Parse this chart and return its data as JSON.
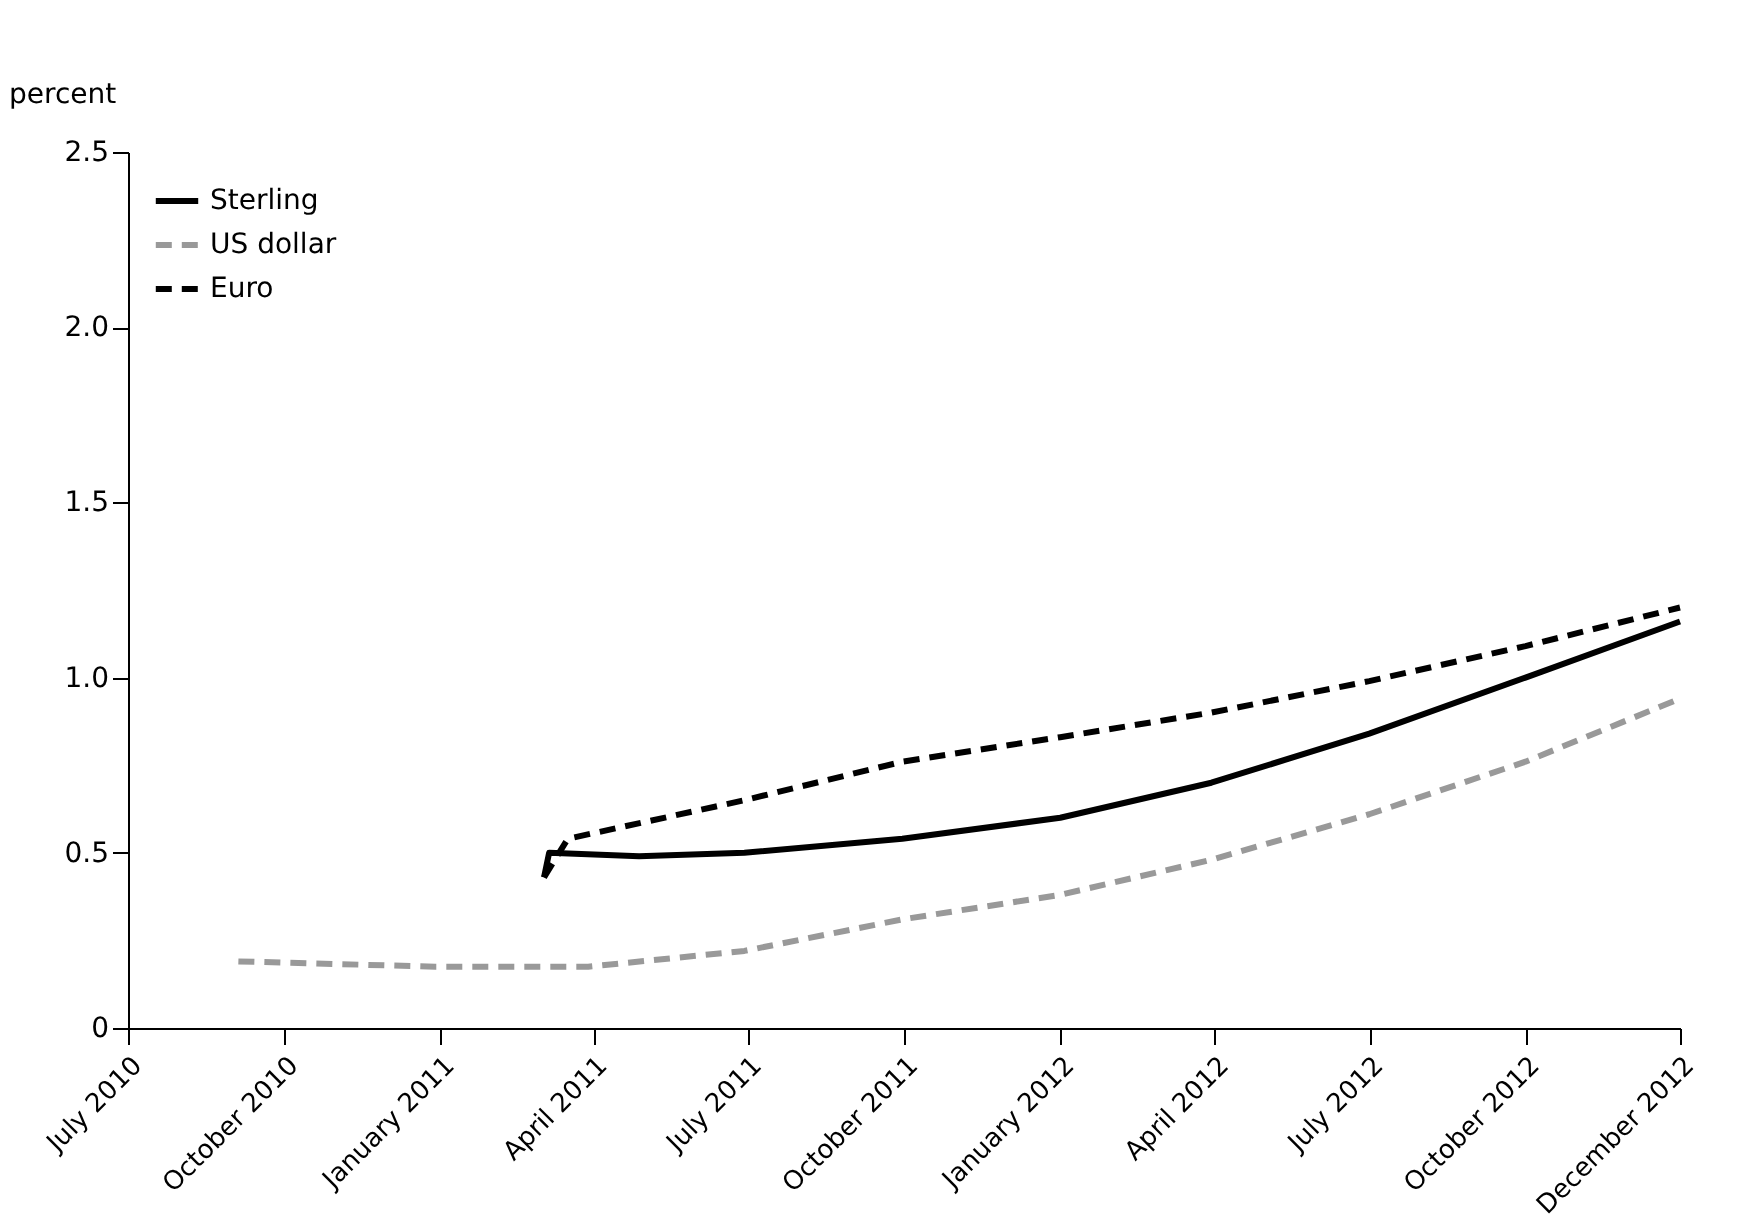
{
  "chart_data": {
    "type": "line",
    "ylabel": "percent",
    "xlim": [
      "2010-07-01",
      "2012-12-31"
    ],
    "xticks": [
      {
        "value": "2010-07-01",
        "label": "July 2010"
      },
      {
        "value": "2010-10-01",
        "label": "October 2010"
      },
      {
        "value": "2011-01-01",
        "label": "January 2011"
      },
      {
        "value": "2011-04-01",
        "label": "April 2011"
      },
      {
        "value": "2011-07-01",
        "label": "July 2011"
      },
      {
        "value": "2011-10-01",
        "label": "October 2011"
      },
      {
        "value": "2012-01-01",
        "label": "January 2012"
      },
      {
        "value": "2012-04-01",
        "label": "April 2012"
      },
      {
        "value": "2012-07-01",
        "label": "July 2012"
      },
      {
        "value": "2012-10-01",
        "label": "October 2012"
      },
      {
        "value": "2012-12-31",
        "label": "December 2012"
      }
    ],
    "ylim": [
      0,
      2.5
    ],
    "yticks": [
      {
        "value": 0,
        "label": "0"
      },
      0.5,
      {
        "value": 1,
        "label": "1.0"
      },
      1.5,
      {
        "value": 2,
        "label": "2.0"
      },
      2.5
    ],
    "legend": "top left",
    "series": [
      {
        "name": "Sterling",
        "color": "#000000",
        "line_style": "solid",
        "x": [
          "2011-03-03",
          "2011-03-06",
          "2011-04-28",
          "2011-06-29",
          "2011-09-30",
          "2012-01-01",
          "2012-03-30",
          "2012-07-01",
          "2012-10-01",
          "2012-12-31"
        ],
        "values": [
          0.43,
          0.5,
          0.49,
          0.5,
          0.54,
          0.6,
          0.7,
          0.84,
          1.0,
          1.16
        ]
      },
      {
        "name": "US dollar",
        "color": "#999999",
        "line_style": "dashed",
        "x": [
          "2010-09-04",
          "2010-12-29",
          "2011-03-29",
          "2011-06-29",
          "2011-09-30",
          "2012-01-01",
          "2012-03-30",
          "2012-07-01",
          "2012-10-01",
          "2012-12-31"
        ],
        "values": [
          0.19,
          0.175,
          0.175,
          0.22,
          0.31,
          0.38,
          0.48,
          0.61,
          0.76,
          0.94
        ]
      },
      {
        "name": "Euro",
        "color": "#000000",
        "line_style": "dashed",
        "x": [
          "2011-03-03",
          "2011-03-17",
          "2011-06-29",
          "2011-09-30",
          "2012-01-01",
          "2012-03-30",
          "2012-07-01",
          "2012-10-01",
          "2012-12-31"
        ],
        "values": [
          0.43,
          0.54,
          0.65,
          0.76,
          0.83,
          0.9,
          0.99,
          1.09,
          1.2
        ]
      }
    ]
  }
}
